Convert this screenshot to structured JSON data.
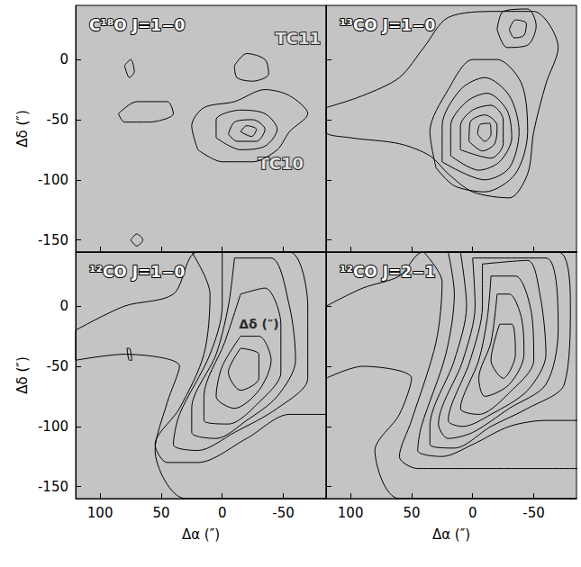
{
  "chart_data": [
    {
      "type": "contour",
      "title": "C¹⁸O J=1−0",
      "color": "#000000",
      "xlim": [
        120,
        -85
      ],
      "ylim": [
        -160,
        45
      ],
      "xticks": [
        100,
        50,
        0,
        -50
      ],
      "yticks": [
        0,
        -50,
        -100,
        -150
      ],
      "tick_labels": "y",
      "ylabel": "Δδ (″)",
      "annotations": [
        {
          "text": "TC11",
          "x": -62,
          "y": 18
        },
        {
          "text": "TC10",
          "x": -48,
          "y": -86
        }
      ],
      "contours": [
        [
          [
            20,
            -75
          ],
          [
            25,
            -55
          ],
          [
            15,
            -40
          ],
          [
            -10,
            -35
          ],
          [
            -35,
            -25
          ],
          [
            -55,
            -30
          ],
          [
            -70,
            -45
          ],
          [
            -55,
            -60
          ],
          [
            -45,
            -75
          ],
          [
            -25,
            -85
          ],
          [
            0,
            -85
          ]
        ],
        [
          [
            5,
            -65
          ],
          [
            5,
            -50
          ],
          [
            -15,
            -42
          ],
          [
            -35,
            -45
          ],
          [
            -45,
            -58
          ],
          [
            -35,
            -72
          ],
          [
            -15,
            -75
          ]
        ],
        [
          [
            -5,
            -62
          ],
          [
            -10,
            -52
          ],
          [
            -25,
            -50
          ],
          [
            -35,
            -58
          ],
          [
            -28,
            -68
          ],
          [
            -12,
            -68
          ]
        ],
        [
          [
            -15,
            -60
          ],
          [
            -20,
            -55
          ],
          [
            -28,
            -58
          ],
          [
            -24,
            -64
          ]
        ],
        [
          [
            -10,
            -5
          ],
          [
            -20,
            5
          ],
          [
            -35,
            0
          ],
          [
            -38,
            -12
          ],
          [
            -25,
            -18
          ],
          [
            -12,
            -15
          ]
        ],
        [
          [
            85,
            -45
          ],
          [
            70,
            -35
          ],
          [
            45,
            -35
          ],
          [
            40,
            -45
          ],
          [
            60,
            -52
          ],
          [
            80,
            -52
          ]
        ],
        [
          [
            80,
            -5
          ],
          [
            75,
            0
          ],
          [
            72,
            -10
          ],
          [
            76,
            -15
          ]
        ],
        [
          [
            75,
            -150
          ],
          [
            70,
            -145
          ],
          [
            65,
            -150
          ],
          [
            70,
            -155
          ]
        ]
      ]
    },
    {
      "type": "contour",
      "title": "¹³CO J=1−0",
      "color": "#000000",
      "xlim": [
        120,
        -85
      ],
      "ylim": [
        -160,
        45
      ],
      "xticks": [
        100,
        50,
        0,
        -50
      ],
      "yticks": [
        0,
        -50,
        -100,
        -150
      ],
      "tick_labels": false,
      "annotations": [],
      "contours": [
        [
          [
            120,
            -40
          ],
          [
            90,
            -30
          ],
          [
            60,
            -15
          ],
          [
            40,
            10
          ],
          [
            20,
            35
          ],
          [
            -20,
            40
          ],
          [
            -50,
            40
          ],
          [
            -70,
            10
          ],
          [
            -60,
            -20
          ],
          [
            -50,
            -60
          ],
          [
            -45,
            -95
          ],
          [
            -30,
            -115
          ],
          [
            0,
            -110
          ],
          [
            20,
            -95
          ],
          [
            35,
            -80
          ],
          [
            60,
            -70
          ],
          [
            100,
            -65
          ],
          [
            120,
            -60
          ]
        ],
        [
          [
            30,
            -90
          ],
          [
            35,
            -60
          ],
          [
            20,
            -25
          ],
          [
            0,
            0
          ],
          [
            -20,
            0
          ],
          [
            -40,
            -20
          ],
          [
            -45,
            -60
          ],
          [
            -35,
            -95
          ],
          [
            -10,
            -110
          ],
          [
            15,
            -105
          ]
        ],
        [
          [
            25,
            -85
          ],
          [
            25,
            -55
          ],
          [
            10,
            -25
          ],
          [
            -10,
            -15
          ],
          [
            -30,
            -30
          ],
          [
            -38,
            -60
          ],
          [
            -30,
            -90
          ],
          [
            -10,
            -100
          ]
        ],
        [
          [
            18,
            -80
          ],
          [
            18,
            -55
          ],
          [
            5,
            -35
          ],
          [
            -12,
            -28
          ],
          [
            -28,
            -42
          ],
          [
            -32,
            -65
          ],
          [
            -22,
            -85
          ],
          [
            -5,
            -92
          ]
        ],
        [
          [
            10,
            -75
          ],
          [
            10,
            -55
          ],
          [
            0,
            -42
          ],
          [
            -15,
            -38
          ],
          [
            -25,
            -50
          ],
          [
            -25,
            -70
          ],
          [
            -15,
            -82
          ]
        ],
        [
          [
            3,
            -68
          ],
          [
            2,
            -52
          ],
          [
            -10,
            -46
          ],
          [
            -20,
            -55
          ],
          [
            -18,
            -70
          ],
          [
            -8,
            -76
          ]
        ],
        [
          [
            -4,
            -62
          ],
          [
            -6,
            -54
          ],
          [
            -14,
            -53
          ],
          [
            -15,
            -62
          ],
          [
            -10,
            -68
          ]
        ],
        [
          [
            -20,
            25
          ],
          [
            -25,
            40
          ],
          [
            -45,
            42
          ],
          [
            -52,
            28
          ],
          [
            -45,
            12
          ],
          [
            -28,
            10
          ]
        ],
        [
          [
            -30,
            25
          ],
          [
            -35,
            33
          ],
          [
            -44,
            30
          ],
          [
            -42,
            20
          ],
          [
            -34,
            18
          ]
        ]
      ]
    },
    {
      "type": "contour",
      "title": "¹²CO J=1−0",
      "color": "#000000",
      "xlim": [
        120,
        -85
      ],
      "ylim": [
        -160,
        45
      ],
      "xticks": [
        100,
        50,
        0,
        -50
      ],
      "yticks": [
        0,
        -50,
        -100,
        -150
      ],
      "tick_labels": true,
      "xlabel": "Δα (″)",
      "ylabel": "Δδ (″)",
      "annotations": [
        {
          "text": "Δδ (″)",
          "x": -30,
          "y": -15
        }
      ],
      "contours": [
        [
          [
            120,
            -20
          ],
          [
            80,
            0
          ],
          [
            40,
            10
          ],
          [
            20,
            45
          ],
          [
            -100,
            45
          ],
          [
            -100,
            -160
          ],
          [
            30,
            -160
          ],
          [
            55,
            -120
          ],
          [
            45,
            -80
          ],
          [
            35,
            -50
          ],
          [
            80,
            -40
          ],
          [
            120,
            -45
          ]
        ],
        [
          [
            25,
            45
          ],
          [
            10,
            10
          ],
          [
            15,
            -40
          ],
          [
            35,
            -85
          ],
          [
            55,
            -115
          ],
          [
            45,
            -130
          ],
          [
            20,
            -130
          ],
          [
            -20,
            -110
          ],
          [
            -55,
            -90
          ],
          [
            -100,
            -90
          ],
          [
            -100,
            45
          ]
        ],
        [
          [
            0,
            45
          ],
          [
            0,
            0
          ],
          [
            10,
            -40
          ],
          [
            35,
            -90
          ],
          [
            40,
            -115
          ],
          [
            20,
            -120
          ],
          [
            -10,
            -105
          ],
          [
            -45,
            -85
          ],
          [
            -70,
            -60
          ],
          [
            -70,
            0
          ],
          [
            -55,
            45
          ]
        ],
        [
          [
            -10,
            40
          ],
          [
            -5,
            0
          ],
          [
            5,
            -40
          ],
          [
            25,
            -85
          ],
          [
            25,
            -105
          ],
          [
            5,
            -110
          ],
          [
            -20,
            -95
          ],
          [
            -45,
            -75
          ],
          [
            -60,
            -45
          ],
          [
            -55,
            0
          ],
          [
            -40,
            40
          ]
        ],
        [
          [
            -15,
            10
          ],
          [
            -2,
            -30
          ],
          [
            15,
            -75
          ],
          [
            15,
            -95
          ],
          [
            -5,
            -98
          ],
          [
            -30,
            -80
          ],
          [
            -48,
            -55
          ],
          [
            -48,
            -15
          ],
          [
            -35,
            15
          ]
        ],
        [
          [
            -15,
            -25
          ],
          [
            0,
            -50
          ],
          [
            5,
            -75
          ],
          [
            -10,
            -85
          ],
          [
            -30,
            -70
          ],
          [
            -40,
            -45
          ],
          [
            -30,
            -25
          ]
        ],
        [
          [
            -15,
            -35
          ],
          [
            -5,
            -55
          ],
          [
            -15,
            -70
          ],
          [
            -30,
            -60
          ],
          [
            -30,
            -40
          ]
        ],
        [
          [
            78,
            -35
          ],
          [
            76,
            -45
          ],
          [
            74,
            -45
          ],
          [
            76,
            -35
          ]
        ]
      ]
    },
    {
      "type": "contour",
      "title": "¹²CO J=2−1",
      "color": "#000000",
      "xlim": [
        120,
        -85
      ],
      "ylim": [
        -160,
        45
      ],
      "xticks": [
        100,
        50,
        0,
        -50
      ],
      "yticks": [
        0,
        -50,
        -100,
        -150
      ],
      "tick_labels": "x",
      "xlabel": "Δα (″)",
      "annotations": [],
      "contours": [
        [
          [
            120,
            0
          ],
          [
            90,
            15
          ],
          [
            60,
            25
          ],
          [
            40,
            45
          ],
          [
            -100,
            45
          ],
          [
            -100,
            -160
          ],
          [
            60,
            -160
          ],
          [
            80,
            -120
          ],
          [
            60,
            -90
          ],
          [
            50,
            -60
          ],
          [
            90,
            -50
          ],
          [
            120,
            -60
          ]
        ],
        [
          [
            40,
            45
          ],
          [
            25,
            20
          ],
          [
            30,
            -30
          ],
          [
            50,
            -95
          ],
          [
            60,
            -125
          ],
          [
            45,
            -135
          ],
          [
            -100,
            -135
          ],
          [
            -100,
            45
          ]
        ],
        [
          [
            20,
            45
          ],
          [
            15,
            10
          ],
          [
            22,
            -40
          ],
          [
            42,
            -100
          ],
          [
            45,
            -120
          ],
          [
            25,
            -125
          ],
          [
            0,
            -115
          ],
          [
            -30,
            -100
          ],
          [
            -60,
            -95
          ],
          [
            -100,
            -95
          ],
          [
            -100,
            45
          ]
        ],
        [
          [
            10,
            45
          ],
          [
            5,
            0
          ],
          [
            15,
            -45
          ],
          [
            35,
            -100
          ],
          [
            35,
            -115
          ],
          [
            15,
            -118
          ],
          [
            -15,
            -100
          ],
          [
            -45,
            -85
          ],
          [
            -75,
            -65
          ],
          [
            -80,
            0
          ],
          [
            -70,
            45
          ]
        ],
        [
          [
            0,
            40
          ],
          [
            -2,
            0
          ],
          [
            8,
            -45
          ],
          [
            28,
            -98
          ],
          [
            20,
            -110
          ],
          [
            0,
            -105
          ],
          [
            -30,
            -85
          ],
          [
            -60,
            -65
          ],
          [
            -70,
            -20
          ],
          [
            -60,
            40
          ]
        ],
        [
          [
            -8,
            35
          ],
          [
            -8,
            0
          ],
          [
            2,
            -45
          ],
          [
            20,
            -95
          ],
          [
            8,
            -100
          ],
          [
            -15,
            -90
          ],
          [
            -45,
            -70
          ],
          [
            -60,
            -40
          ],
          [
            -55,
            10
          ],
          [
            -45,
            38
          ]
        ],
        [
          [
            -15,
            25
          ],
          [
            -12,
            -10
          ],
          [
            -5,
            -45
          ],
          [
            10,
            -85
          ],
          [
            -5,
            -90
          ],
          [
            -30,
            -72
          ],
          [
            -50,
            -45
          ],
          [
            -48,
            -5
          ],
          [
            -35,
            25
          ]
        ],
        [
          [
            -20,
            10
          ],
          [
            -15,
            -30
          ],
          [
            -5,
            -60
          ],
          [
            -10,
            -75
          ],
          [
            -30,
            -65
          ],
          [
            -42,
            -40
          ],
          [
            -40,
            -10
          ],
          [
            -30,
            10
          ]
        ],
        [
          [
            -22,
            -15
          ],
          [
            -15,
            -45
          ],
          [
            -25,
            -60
          ],
          [
            -35,
            -40
          ],
          [
            -32,
            -15
          ]
        ]
      ]
    }
  ]
}
